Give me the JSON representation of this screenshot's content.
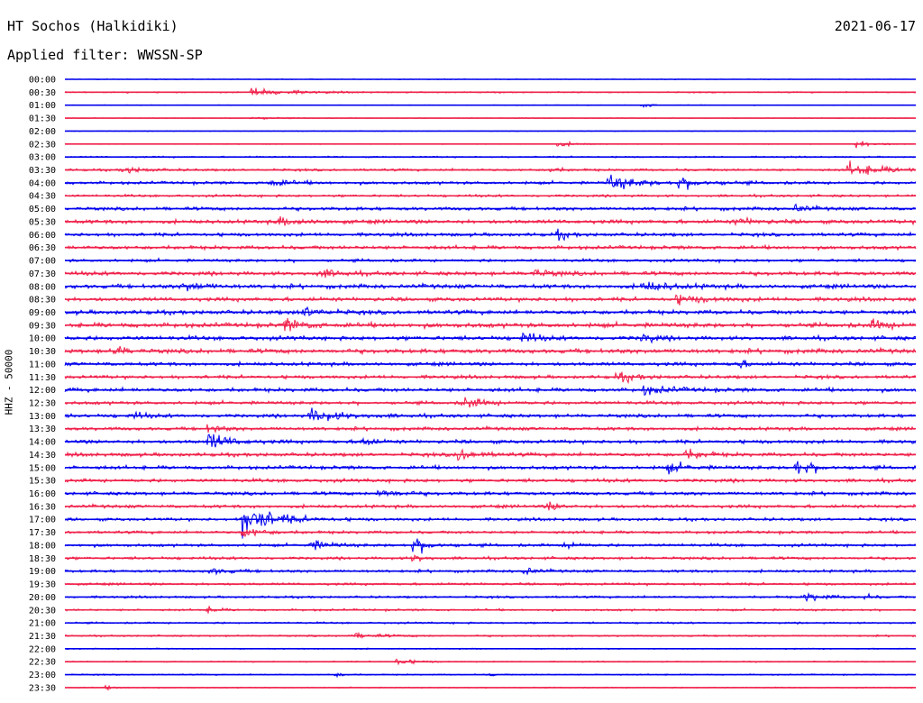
{
  "header": {
    "station": "HT Sochos (Halkidiki)",
    "date": "2021-06-17",
    "filter_label": "Applied filter:",
    "filter_value": "WWSSN-SP"
  },
  "channel_label": "HHZ - 50000",
  "colors": {
    "trace_a": "#0000ee",
    "trace_b": "#f0204a",
    "text": "#000000"
  },
  "traces": {
    "times": [
      "00:00",
      "00:30",
      "01:00",
      "01:30",
      "02:00",
      "02:30",
      "03:00",
      "03:30",
      "04:00",
      "04:30",
      "05:00",
      "05:30",
      "06:00",
      "06:30",
      "07:00",
      "07:30",
      "08:00",
      "08:30",
      "09:00",
      "09:30",
      "10:00",
      "10:30",
      "11:00",
      "11:30",
      "12:00",
      "12:30",
      "13:00",
      "13:30",
      "14:00",
      "14:30",
      "15:00",
      "15:30",
      "16:00",
      "16:30",
      "17:00",
      "17:30",
      "18:00",
      "18:30",
      "19:00",
      "19:30",
      "20:00",
      "20:30",
      "21:00",
      "21:30",
      "22:00",
      "22:30",
      "23:00",
      "23:30"
    ],
    "color_pattern": [
      "trace_a",
      "trace_b"
    ],
    "noise_level": [
      0.6,
      1.0,
      0.6,
      0.6,
      0.5,
      0.6,
      1.2,
      1.8,
      2.3,
      1.9,
      2.6,
      3.0,
      2.6,
      2.8,
      2.3,
      3.0,
      3.2,
      3.0,
      3.2,
      3.6,
      3.2,
      3.4,
      2.8,
      2.6,
      2.9,
      2.6,
      2.7,
      2.6,
      2.8,
      2.8,
      2.8,
      2.7,
      2.6,
      2.5,
      2.3,
      2.2,
      2.3,
      2.2,
      2.1,
      1.9,
      1.7,
      1.6,
      1.4,
      1.3,
      0.9,
      0.9,
      1.0,
      0.8
    ],
    "events": [
      {
        "row": 1,
        "time_fraction": 0.22,
        "amplitude": 7,
        "duration": 0.04
      },
      {
        "row": 2,
        "time_fraction": 0.68,
        "amplitude": 4,
        "duration": 0.01
      },
      {
        "row": 3,
        "time_fraction": 0.22,
        "amplitude": 3,
        "duration": 0.02
      },
      {
        "row": 5,
        "time_fraction": 0.58,
        "amplitude": 4,
        "duration": 0.02
      },
      {
        "row": 5,
        "time_fraction": 0.93,
        "amplitude": 6,
        "duration": 0.02
      },
      {
        "row": 7,
        "time_fraction": 0.07,
        "amplitude": 5,
        "duration": 0.02
      },
      {
        "row": 7,
        "time_fraction": 0.57,
        "amplitude": 5,
        "duration": 0.01
      },
      {
        "row": 7,
        "time_fraction": 0.92,
        "amplitude": 10,
        "duration": 0.04
      },
      {
        "row": 8,
        "time_fraction": 0.24,
        "amplitude": 6,
        "duration": 0.02
      },
      {
        "row": 8,
        "time_fraction": 0.64,
        "amplitude": 12,
        "duration": 0.03
      },
      {
        "row": 8,
        "time_fraction": 0.72,
        "amplitude": 8,
        "duration": 0.03
      },
      {
        "row": 10,
        "time_fraction": 0.86,
        "amplitude": 7,
        "duration": 0.01
      },
      {
        "row": 11,
        "time_fraction": 0.25,
        "amplitude": 5,
        "duration": 0.03
      },
      {
        "row": 11,
        "time_fraction": 0.79,
        "amplitude": 5,
        "duration": 0.02
      },
      {
        "row": 12,
        "time_fraction": 0.58,
        "amplitude": 7,
        "duration": 0.01
      },
      {
        "row": 15,
        "time_fraction": 0.3,
        "amplitude": 6,
        "duration": 0.02
      },
      {
        "row": 15,
        "time_fraction": 0.55,
        "amplitude": 6,
        "duration": 0.02
      },
      {
        "row": 16,
        "time_fraction": 0.14,
        "amplitude": 7,
        "duration": 0.02
      },
      {
        "row": 16,
        "time_fraction": 0.68,
        "amplitude": 7,
        "duration": 0.03
      },
      {
        "row": 17,
        "time_fraction": 0.72,
        "amplitude": 6,
        "duration": 0.03
      },
      {
        "row": 18,
        "time_fraction": 0.28,
        "amplitude": 9,
        "duration": 0.02
      },
      {
        "row": 19,
        "time_fraction": 0.26,
        "amplitude": 9,
        "duration": 0.02
      },
      {
        "row": 19,
        "time_fraction": 0.95,
        "amplitude": 7,
        "duration": 0.02
      },
      {
        "row": 20,
        "time_fraction": 0.54,
        "amplitude": 12,
        "duration": 0.01
      },
      {
        "row": 20,
        "time_fraction": 0.68,
        "amplitude": 9,
        "duration": 0.01
      },
      {
        "row": 21,
        "time_fraction": 0.06,
        "amplitude": 9,
        "duration": 0.01
      },
      {
        "row": 22,
        "time_fraction": 0.79,
        "amplitude": 8,
        "duration": 0.01
      },
      {
        "row": 23,
        "time_fraction": 0.65,
        "amplitude": 7,
        "duration": 0.02
      },
      {
        "row": 24,
        "time_fraction": 0.68,
        "amplitude": 6,
        "duration": 0.03
      },
      {
        "row": 25,
        "time_fraction": 0.47,
        "amplitude": 9,
        "duration": 0.02
      },
      {
        "row": 26,
        "time_fraction": 0.29,
        "amplitude": 11,
        "duration": 0.03
      },
      {
        "row": 26,
        "time_fraction": 0.08,
        "amplitude": 7,
        "duration": 0.01
      },
      {
        "row": 27,
        "time_fraction": 0.17,
        "amplitude": 9,
        "duration": 0.01
      },
      {
        "row": 28,
        "time_fraction": 0.17,
        "amplitude": 14,
        "duration": 0.02
      },
      {
        "row": 28,
        "time_fraction": 0.35,
        "amplitude": 8,
        "duration": 0.01
      },
      {
        "row": 29,
        "time_fraction": 0.46,
        "amplitude": 10,
        "duration": 0.02
      },
      {
        "row": 29,
        "time_fraction": 0.73,
        "amplitude": 7,
        "duration": 0.02
      },
      {
        "row": 30,
        "time_fraction": 0.86,
        "amplitude": 13,
        "duration": 0.02
      },
      {
        "row": 30,
        "time_fraction": 0.71,
        "amplitude": 7,
        "duration": 0.02
      },
      {
        "row": 32,
        "time_fraction": 0.37,
        "amplitude": 7,
        "duration": 0.02
      },
      {
        "row": 33,
        "time_fraction": 0.57,
        "amplitude": 7,
        "duration": 0.01
      },
      {
        "row": 34,
        "time_fraction": 0.21,
        "amplitude": 28,
        "duration": 0.03
      },
      {
        "row": 35,
        "time_fraction": 0.21,
        "amplitude": 8,
        "duration": 0.02
      },
      {
        "row": 36,
        "time_fraction": 0.41,
        "amplitude": 12,
        "duration": 0.02
      },
      {
        "row": 36,
        "time_fraction": 0.59,
        "amplitude": 8,
        "duration": 0.01
      },
      {
        "row": 36,
        "time_fraction": 0.29,
        "amplitude": 7,
        "duration": 0.02
      },
      {
        "row": 37,
        "time_fraction": 0.41,
        "amplitude": 7,
        "duration": 0.01
      },
      {
        "row": 38,
        "time_fraction": 0.54,
        "amplitude": 7,
        "duration": 0.01
      },
      {
        "row": 38,
        "time_fraction": 0.17,
        "amplitude": 5,
        "duration": 0.02
      },
      {
        "row": 40,
        "time_fraction": 0.87,
        "amplitude": 7,
        "duration": 0.02
      },
      {
        "row": 40,
        "time_fraction": 0.94,
        "amplitude": 4,
        "duration": 0.01
      },
      {
        "row": 41,
        "time_fraction": 0.17,
        "amplitude": 5,
        "duration": 0.01
      },
      {
        "row": 43,
        "time_fraction": 0.34,
        "amplitude": 4,
        "duration": 0.03
      },
      {
        "row": 45,
        "time_fraction": 0.39,
        "amplitude": 5,
        "duration": 0.02
      },
      {
        "row": 46,
        "time_fraction": 0.32,
        "amplitude": 3,
        "duration": 0.01
      },
      {
        "row": 46,
        "time_fraction": 0.5,
        "amplitude": 3,
        "duration": 0.005
      },
      {
        "row": 47,
        "time_fraction": 0.05,
        "amplitude": 3,
        "duration": 0.01
      }
    ]
  }
}
